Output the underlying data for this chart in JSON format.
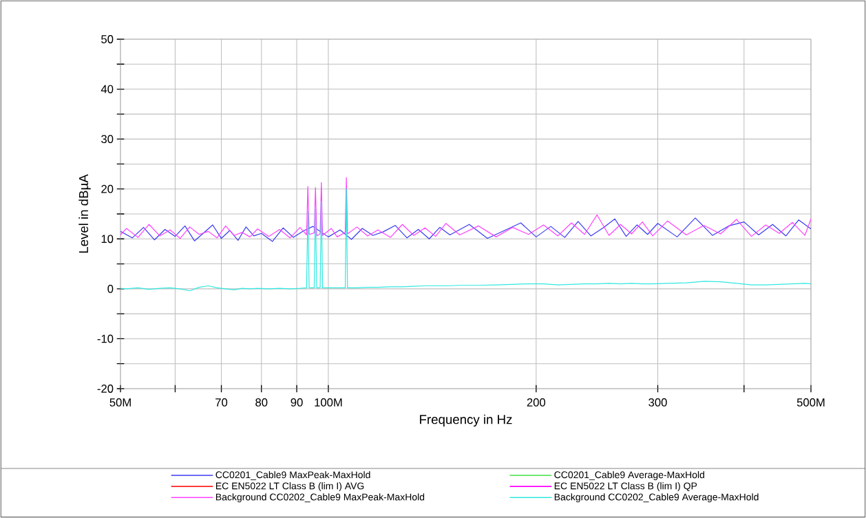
{
  "chart_data": {
    "type": "line",
    "xlabel": "Frequency in Hz",
    "ylabel": "Level in dBµA",
    "log": "x",
    "grid": true,
    "legend": "bottom",
    "xlim": [
      50,
      500
    ],
    "ylim": [
      -20,
      50
    ],
    "xticks": [
      {
        "value": 50,
        "label": "50M"
      },
      {
        "value": 60,
        "label": null
      },
      70,
      80,
      90,
      {
        "value": 100,
        "label": "100M"
      },
      200,
      300,
      {
        "value": 400,
        "label": null
      },
      {
        "value": 500,
        "label": "500M"
      }
    ],
    "yticks": [
      -20,
      {
        "value": -15,
        "label": null
      },
      -10,
      {
        "value": -5,
        "label": null
      },
      0,
      {
        "value": 5,
        "label": null
      },
      10,
      {
        "value": 15,
        "label": null
      },
      20,
      {
        "value": 25,
        "label": null
      },
      30,
      {
        "value": 35,
        "label": null
      },
      40,
      {
        "value": 45,
        "label": null
      },
      50
    ],
    "series": [
      {
        "name": "CC0201_Cable9 MaxPeak-MaxHold",
        "color": "#3a3af0",
        "x": [
          50,
          52,
          54,
          56,
          58,
          60,
          62,
          64,
          66,
          68,
          70,
          72,
          74,
          76,
          78,
          80,
          83,
          86,
          89,
          92,
          95,
          100,
          104,
          108,
          112,
          116,
          120,
          125,
          130,
          135,
          140,
          145,
          150,
          160,
          170,
          180,
          190,
          200,
          210,
          220,
          230,
          240,
          250,
          260,
          270,
          280,
          290,
          300,
          320,
          340,
          360,
          380,
          400,
          420,
          440,
          460,
          480,
          500
        ],
        "values": [
          11.5,
          10.2,
          12.3,
          9.8,
          11.9,
          10.5,
          12.6,
          9.6,
          11.2,
          12.8,
          10.1,
          11.7,
          9.7,
          12.4,
          10.6,
          11.1,
          9.5,
          12.2,
          10.3,
          11.6,
          12.5,
          10.4,
          11.8,
          9.9,
          12.1,
          10.7,
          11.4,
          12.7,
          10.2,
          11.9,
          10.0,
          12.3,
          10.8,
          12.9,
          10.1,
          11.7,
          13.2,
          10.4,
          12.5,
          10.3,
          13.5,
          10.6,
          12.2,
          14.0,
          10.5,
          12.8,
          10.9,
          13.1,
          10.4,
          14.2,
          10.7,
          12.6,
          13.4,
          10.8,
          12.9,
          10.6,
          13.8,
          12.0
        ]
      },
      {
        "name": "CC0201_Cable9 Average-MaxHold",
        "color": "#40e040"
      },
      {
        "name": "EC EN5022  LT Class B  (lim I) AVG",
        "color": "#ff2020"
      },
      {
        "name": "EC EN5022  LT Class B  (lim I) QP",
        "color": "#ff00ff"
      },
      {
        "name": "Background CC0202_Cable9 MaxPeak-MaxHold",
        "color": "#ff40ff",
        "x": [
          50,
          51,
          53,
          55,
          57,
          59,
          61,
          63,
          65,
          67,
          69,
          71,
          73,
          75,
          77,
          79,
          82,
          85,
          88,
          91,
          93,
          93.4,
          93.8,
          95.4,
          95.8,
          96.2,
          97.3,
          97.7,
          98.1,
          101,
          103,
          105.8,
          106.2,
          106.6,
          110,
          114,
          118,
          123,
          128,
          133,
          138,
          143,
          148,
          155,
          165,
          175,
          185,
          195,
          205,
          215,
          225,
          235,
          245,
          255,
          265,
          275,
          285,
          295,
          310,
          330,
          350,
          370,
          390,
          410,
          430,
          450,
          470,
          490,
          500
        ],
        "values": [
          10.8,
          12.1,
          10.3,
          12.9,
          10.6,
          11.8,
          10.1,
          12.4,
          10.9,
          11.5,
          10.2,
          12.6,
          10.7,
          11.3,
          10.4,
          12.0,
          10.5,
          11.9,
          10.2,
          12.3,
          10.8,
          20.5,
          10.9,
          11.2,
          20.3,
          10.6,
          11.0,
          21.3,
          10.7,
          12.1,
          10.4,
          11.3,
          22.3,
          11.0,
          12.4,
          10.6,
          11.8,
          10.3,
          12.9,
          10.7,
          12.2,
          10.5,
          13.1,
          10.8,
          12.6,
          10.4,
          12.3,
          10.9,
          12.8,
          10.6,
          13.2,
          10.9,
          14.8,
          10.7,
          12.9,
          11.0,
          13.4,
          10.6,
          13.6,
          10.8,
          12.7,
          11.0,
          13.9,
          10.5,
          12.8,
          11.1,
          13.3,
          10.7,
          14.0
        ]
      },
      {
        "name": "Background CC0202_Cable9 Average-MaxHold",
        "color": "#30e8e0",
        "x": [
          50,
          51,
          53,
          55,
          57,
          59,
          61,
          63,
          65,
          67,
          69,
          71,
          73,
          75,
          77,
          79,
          82,
          85,
          88,
          91,
          93,
          93.4,
          93.8,
          95.4,
          95.8,
          96.2,
          97.3,
          97.7,
          98.1,
          101,
          103,
          105.8,
          106.2,
          106.6,
          110,
          114,
          118,
          123,
          128,
          133,
          138,
          143,
          148,
          155,
          165,
          175,
          185,
          195,
          205,
          215,
          225,
          235,
          245,
          255,
          265,
          275,
          285,
          295,
          310,
          330,
          350,
          370,
          390,
          410,
          430,
          450,
          470,
          490,
          500
        ],
        "values": [
          0.1,
          0.0,
          0.2,
          -0.1,
          0.1,
          0.2,
          0.0,
          -0.4,
          0.3,
          0.6,
          0.2,
          0.0,
          -0.2,
          0.1,
          0.0,
          0.1,
          0.0,
          0.1,
          0.0,
          0.1,
          0.2,
          15.5,
          0.2,
          0.2,
          16.5,
          0.2,
          0.2,
          17.5,
          0.2,
          0.2,
          0.2,
          0.2,
          20.0,
          0.2,
          0.2,
          0.3,
          0.3,
          0.4,
          0.4,
          0.5,
          0.6,
          0.6,
          0.6,
          0.7,
          0.7,
          0.8,
          0.9,
          1.0,
          1.0,
          0.8,
          0.9,
          1.0,
          1.0,
          1.1,
          1.0,
          1.1,
          1.0,
          1.0,
          1.1,
          1.2,
          1.5,
          1.4,
          1.1,
          0.8,
          0.8,
          0.9,
          1.0,
          1.1,
          1.0
        ]
      }
    ]
  }
}
